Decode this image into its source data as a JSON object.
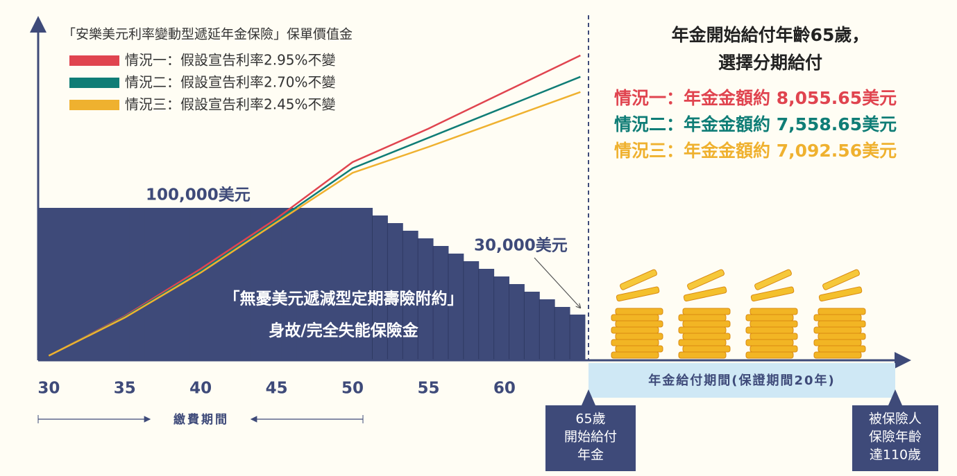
{
  "chart_data": {
    "type": "line",
    "title": "「安樂美元利率變動型遞延年金保險」保單價值金",
    "xlim": [
      29.3,
      86
    ],
    "ylim": [
      0,
      220000
    ],
    "xticks": [
      30,
      35,
      40,
      45,
      50,
      55,
      60
    ],
    "x": [
      30,
      35,
      40,
      45,
      50,
      55,
      60,
      65
    ],
    "series": [
      {
        "name": "情況一：假設宣告利率2.95%不變",
        "color": "#e0444f",
        "values": [
          3000,
          29000,
          60000,
          93000,
          130000,
          152000,
          176000,
          200000
        ]
      },
      {
        "name": "情況二：假設宣告利率2.70%不變",
        "color": "#0f7d76",
        "values": [
          3000,
          28500,
          58500,
          91500,
          126000,
          146000,
          166000,
          186000
        ]
      },
      {
        "name": "情況三：假設宣告利率2.45%不變",
        "color": "#efb12f",
        "values": [
          3000,
          28000,
          57500,
          90500,
          123000,
          140000,
          158000,
          176000
        ]
      }
    ],
    "death_benefit": {
      "name": "「無憂美元遞減型定期壽險附約」",
      "subtitle": "身故/完全失能保險金",
      "color": "#3e4a79",
      "x": [
        30,
        31,
        32,
        33,
        34,
        35,
        36,
        37,
        38,
        39,
        40,
        41,
        42,
        43,
        44,
        45,
        46,
        47,
        48,
        49,
        50,
        51,
        52,
        53,
        54,
        55,
        56,
        57,
        58,
        59,
        60,
        61,
        62,
        63,
        64,
        65
      ],
      "values": [
        100000,
        100000,
        100000,
        100000,
        100000,
        100000,
        100000,
        100000,
        100000,
        100000,
        100000,
        100000,
        100000,
        100000,
        100000,
        100000,
        100000,
        100000,
        100000,
        100000,
        100000,
        100000,
        95000,
        90000,
        85000,
        80000,
        75000,
        70000,
        65000,
        60000,
        55000,
        50000,
        45000,
        40000,
        35000,
        30000
      ],
      "max_label": "100,000美元",
      "min_label": "30,000美元"
    },
    "payment_period": "繳費期間",
    "annuity_period": "年金給付期間(保證期間20年)",
    "start_callout": [
      "65歲",
      "開始給付",
      "年金"
    ],
    "end_callout": [
      "被保險人",
      "保險年齡",
      "達110歲"
    ],
    "annuity_heading": [
      "年金開始給付年齡65歲，",
      "選擇分期給付"
    ],
    "annuity_payouts": [
      {
        "label": "情況一：年金金額約 ",
        "amount": "8,055.65美元"
      },
      {
        "label": "情況二：年金金額約 ",
        "amount": "7,558.65美元"
      },
      {
        "label": "情況三：年金金額約 ",
        "amount": "7,092.56美元"
      }
    ]
  }
}
